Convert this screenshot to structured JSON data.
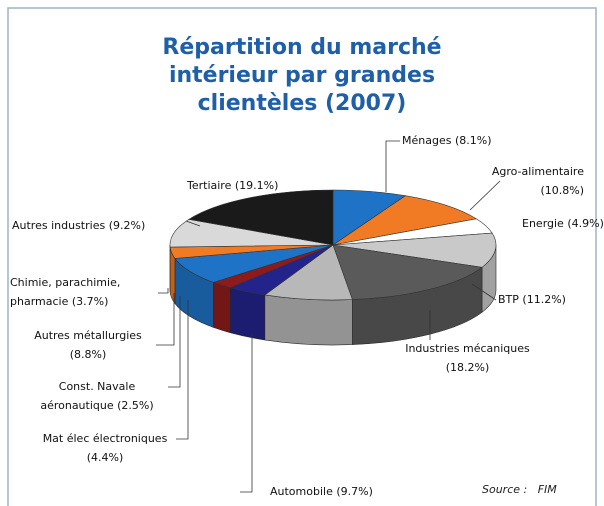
{
  "chart_data": {
    "type": "pie3d",
    "title": "Répartition du marché intérieur par grandes clientèles (2007)",
    "categories": [
      "Ménages",
      "Agro-alimentaire",
      "Energie",
      "BTP",
      "Industries mécaniques",
      "Automobile",
      "Mat élec électroniques",
      "Const. Navale aéronautique",
      "Autres métallurgies",
      "Chimie, parachimie, pharmacie",
      "Autres industries",
      "Tertiaire"
    ],
    "values": [
      8.1,
      10.8,
      4.9,
      11.2,
      18.2,
      9.7,
      4.4,
      2.5,
      8.8,
      3.7,
      9.2,
      19.1
    ],
    "value_labels": [
      "(8.1%)",
      "(10.8%)",
      "(4.9%)",
      "(11.2%)",
      "(18.2%)",
      "(9.7%)",
      "(4.4%)",
      "(2.5%)",
      "(8.8%)",
      "(3.7%)",
      "(9.2%)",
      "(19.1%)"
    ],
    "colors": [
      "#1f73c6",
      "#f07b24",
      "#ffffff",
      "#c9c9c9",
      "#5a5a5a",
      "#b8b8b8",
      "#23238c",
      "#8e1b1b",
      "#1f73c6",
      "#f07b24",
      "#d9d9d9",
      "#1a1a1a"
    ],
    "source_label": "Source :",
    "source": "FIM"
  }
}
